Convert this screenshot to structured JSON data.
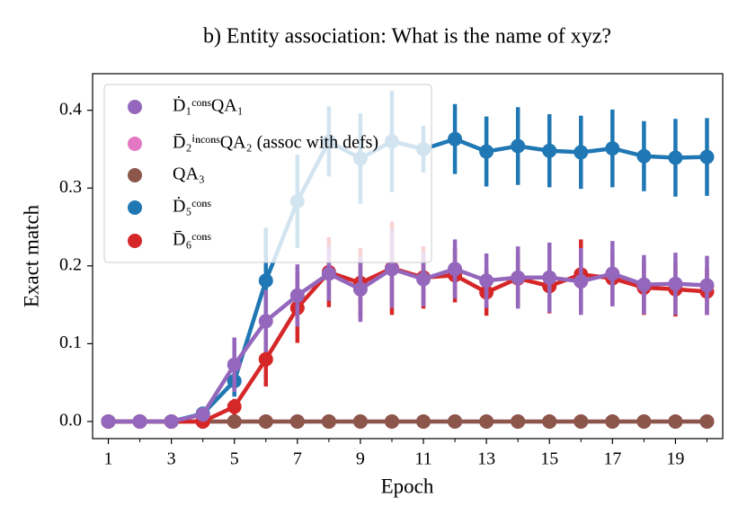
{
  "chart_data": {
    "type": "line",
    "title": "b) Entity association: What is the name of xyz?",
    "xlabel": "Epoch",
    "ylabel": "Exact match",
    "x": [
      1,
      2,
      3,
      4,
      5,
      6,
      7,
      8,
      9,
      10,
      11,
      12,
      13,
      14,
      15,
      16,
      17,
      18,
      19,
      20
    ],
    "xlim": [
      0.5,
      20.5
    ],
    "xticks": [
      1,
      3,
      5,
      7,
      9,
      11,
      13,
      15,
      17,
      19
    ],
    "xminorticks": [
      2,
      4,
      6,
      8,
      10,
      12,
      14,
      16,
      18,
      20
    ],
    "ylim": [
      -0.022,
      0.447
    ],
    "yticks": [
      {
        "value": 0,
        "label": "0.0"
      },
      0.1,
      0.2,
      0.3,
      0.4
    ],
    "legend": "upper left",
    "series": [
      {
        "name": "Ḋ₁ᶜᵒⁿˢQA₁",
        "color": "#9467bd",
        "values": [
          0,
          0,
          0,
          0.009,
          0.073,
          0.129,
          0.162,
          0.19,
          0.17,
          0.196,
          0.183,
          0.196,
          0.181,
          0.185,
          0.185,
          0.18,
          0.19,
          0.176,
          0.177,
          0.175
        ],
        "errors": [
          0,
          0,
          0,
          0.005,
          0.035,
          0.04,
          0.04,
          0.035,
          0.042,
          0.05,
          0.035,
          0.038,
          0.035,
          0.04,
          0.045,
          0.043,
          0.042,
          0.038,
          0.04,
          0.038
        ]
      },
      {
        "name": "D̄₂ⁱⁿᶜᵒⁿˢQA₂ (assoc with defs)",
        "color": "#e377c2",
        "values": [
          0,
          0,
          0,
          0,
          0,
          0,
          0,
          0,
          0,
          0,
          0,
          0,
          0,
          0,
          0,
          0,
          0,
          0,
          0,
          0
        ],
        "errors": [
          0,
          0,
          0,
          0,
          0,
          0,
          0,
          0,
          0,
          0,
          0,
          0,
          0,
          0,
          0,
          0,
          0,
          0,
          0,
          0
        ]
      },
      {
        "name": "QA₃",
        "color": "#8c564b",
        "values": [
          0,
          0,
          0,
          0,
          0,
          0,
          0,
          0,
          0,
          0,
          0,
          0,
          0,
          0,
          0,
          0,
          0,
          0,
          0,
          0
        ],
        "errors": [
          0,
          0,
          0,
          0,
          0,
          0,
          0,
          0,
          0,
          0,
          0,
          0,
          0,
          0,
          0,
          0,
          0,
          0,
          0,
          0
        ]
      },
      {
        "name": "Ḋ₅ᶜᵒⁿˢ",
        "color": "#1f77b4",
        "values": [
          0,
          0,
          0,
          0.01,
          0.052,
          0.181,
          0.283,
          0.36,
          0.338,
          0.36,
          0.35,
          0.363,
          0.347,
          0.354,
          0.348,
          0.346,
          0.351,
          0.341,
          0.339,
          0.34
        ],
        "errors": [
          0,
          0,
          0,
          0.005,
          0.02,
          0.068,
          0.06,
          0.045,
          0.058,
          0.065,
          0.03,
          0.045,
          0.045,
          0.05,
          0.047,
          0.047,
          0.05,
          0.045,
          0.05,
          0.05
        ]
      },
      {
        "name": "D̄₆ᶜᵒⁿˢ",
        "color": "#d62728",
        "values": [
          0,
          0,
          0,
          0,
          0.019,
          0.08,
          0.146,
          0.192,
          0.178,
          0.197,
          0.185,
          0.188,
          0.166,
          0.184,
          0.174,
          0.189,
          0.184,
          0.172,
          0.17,
          0.167
        ],
        "errors": [
          0,
          0,
          0,
          0,
          0.01,
          0.035,
          0.045,
          0.045,
          0.045,
          0.06,
          0.04,
          0.035,
          0.03,
          0.035,
          0.035,
          0.045,
          0.035,
          0.035,
          0.035,
          0.03
        ]
      }
    ]
  }
}
